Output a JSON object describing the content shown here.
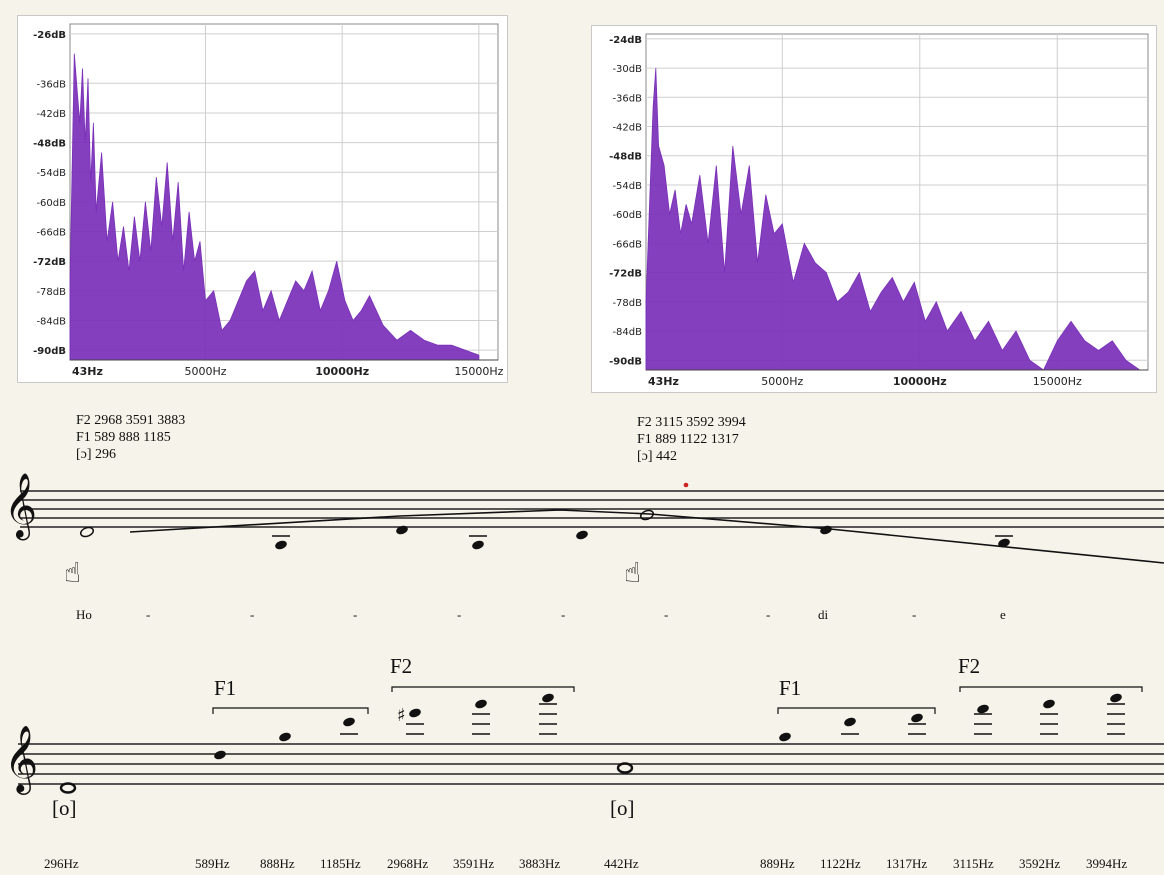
{
  "chart_data": [
    {
      "type": "area",
      "y_ticks": [
        "-26dB",
        "-36dB",
        "-42dB",
        "-48dB",
        "-54dB",
        "-60dB",
        "-66dB",
        "-72dB",
        "-78dB",
        "-84dB",
        "-90dB"
      ],
      "y_ticks_bold": [
        "-26dB",
        "-48dB",
        "-72dB",
        "-90dB"
      ],
      "x_ticks": [
        "43Hz",
        "5000Hz",
        "10000Hz",
        "15000Hz"
      ],
      "x_ticks_bold": [
        "43Hz",
        "10000Hz"
      ],
      "xlim": [
        43,
        15700
      ],
      "ylim": [
        -92,
        -24
      ],
      "grid": true,
      "color": "#7a2fb8",
      "x": [
        43,
        200,
        300,
        400,
        500,
        600,
        700,
        800,
        900,
        1000,
        1200,
        1400,
        1600,
        1800,
        2000,
        2200,
        2400,
        2600,
        2800,
        3000,
        3200,
        3400,
        3600,
        3800,
        4000,
        4200,
        4400,
        4600,
        4800,
        5000,
        5300,
        5600,
        5900,
        6200,
        6500,
        6800,
        7100,
        7400,
        7700,
        8000,
        8300,
        8600,
        8900,
        9200,
        9500,
        9800,
        10100,
        10400,
        10700,
        11000,
        11500,
        12000,
        12500,
        13000,
        13500,
        14000,
        14500,
        15000
      ],
      "y": [
        -76,
        -30,
        -37,
        -44,
        -33,
        -48,
        -35,
        -56,
        -44,
        -62,
        -50,
        -68,
        -60,
        -72,
        -65,
        -74,
        -63,
        -72,
        -60,
        -70,
        -55,
        -65,
        -52,
        -68,
        -56,
        -74,
        -62,
        -72,
        -68,
        -80,
        -78,
        -86,
        -84,
        -80,
        -76,
        -74,
        -82,
        -78,
        -84,
        -80,
        -76,
        -78,
        -74,
        -82,
        -78,
        -72,
        -80,
        -84,
        -82,
        -79,
        -85,
        -88,
        -86,
        -88,
        -89,
        -89,
        -90,
        -91
      ]
    },
    {
      "type": "area",
      "y_ticks": [
        "-24dB",
        "-30dB",
        "-36dB",
        "-42dB",
        "-48dB",
        "-54dB",
        "-60dB",
        "-66dB",
        "-72dB",
        "-78dB",
        "-84dB",
        "-90dB"
      ],
      "y_ticks_bold": [
        "-24dB",
        "-48dB",
        "-72dB",
        "-90dB"
      ],
      "x_ticks": [
        "43Hz",
        "5000Hz",
        "10000Hz",
        "15000Hz"
      ],
      "x_ticks_bold": [
        "43Hz",
        "10000Hz"
      ],
      "xlim": [
        43,
        18300
      ],
      "ylim": [
        -92,
        -23
      ],
      "grid": true,
      "color": "#7a2fb8",
      "x": [
        43,
        300,
        400,
        500,
        700,
        900,
        1100,
        1300,
        1500,
        1700,
        2000,
        2300,
        2600,
        2900,
        3200,
        3500,
        3800,
        4100,
        4400,
        4700,
        5000,
        5400,
        5800,
        6200,
        6600,
        7000,
        7400,
        7800,
        8200,
        8600,
        9000,
        9400,
        9800,
        10200,
        10600,
        11000,
        11500,
        12000,
        12500,
        13000,
        13500,
        14000,
        14500,
        15000,
        15500,
        16000,
        16500,
        17000,
        17500,
        18000
      ],
      "y": [
        -78,
        -38,
        -30,
        -46,
        -50,
        -60,
        -55,
        -64,
        -58,
        -62,
        -52,
        -66,
        -50,
        -72,
        -46,
        -60,
        -50,
        -70,
        -56,
        -64,
        -62,
        -74,
        -66,
        -70,
        -72,
        -78,
        -76,
        -72,
        -80,
        -76,
        -73,
        -78,
        -74,
        -82,
        -78,
        -84,
        -80,
        -86,
        -82,
        -88,
        -84,
        -90,
        -92,
        -86,
        -82,
        -86,
        -88,
        -86,
        -90,
        -92
      ]
    }
  ],
  "annotations": {
    "left": {
      "f2": "F2 2968 3591 3883",
      "f1": "F1 589 888 1185",
      "fund": "[ɔ] 296"
    },
    "right": {
      "f2": "F2 3115 3592 3994",
      "f1": "F1 889 1122 1317",
      "fund": "[ɔ] 442"
    }
  },
  "lyrics": [
    "Ho",
    "-",
    "-",
    "-",
    "-",
    "-",
    "-",
    "-",
    "di",
    "-",
    "e"
  ],
  "formant_labels": {
    "left_f1": "F1",
    "left_f2": "F2",
    "right_f1": "F1",
    "right_f2": "F2"
  },
  "vowel_labels": {
    "left": "[o]",
    "right": "[o]"
  },
  "frequencies": [
    "296Hz",
    "589Hz",
    "888Hz",
    "1185Hz",
    "2968Hz",
    "3591Hz",
    "3883Hz",
    "442Hz",
    "889Hz",
    "1122Hz",
    "1317Hz",
    "3115Hz",
    "3592Hz",
    "3994Hz"
  ]
}
